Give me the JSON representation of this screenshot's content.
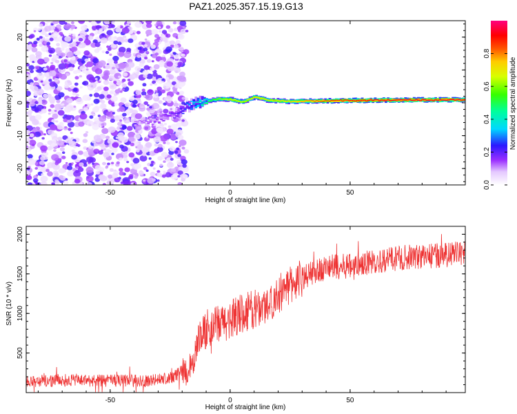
{
  "title": "PAZ1.2025.357.15.19.G13",
  "colors": {
    "snr_line": "#ee3333",
    "frame": "#000000"
  },
  "chart_data": [
    {
      "type": "heatmap",
      "title": "PAZ1.2025.357.15.19.G13",
      "xlabel": "Height of straight line (km)",
      "ylabel": "Frequency (Hz)",
      "xlim": [
        -85,
        98
      ],
      "ylim": [
        -25,
        25
      ],
      "xticks": [
        -50,
        0,
        50
      ],
      "yticks": [
        -20,
        -10,
        0,
        10,
        20
      ],
      "colorbar": {
        "label": "Normalized spectral amplitude",
        "range": [
          0,
          1
        ],
        "ticks": [
          0.0,
          0.2,
          0.4,
          0.6,
          0.8
        ],
        "tick_labels": [
          "0.0",
          "0.2",
          "0.4",
          "0.6",
          "0.8"
        ],
        "colormap": "rainbow (white-violet-blue-cyan-green-yellow-red-magenta)"
      },
      "description_points": {
        "noise_region_x": [
          -85,
          -18
        ],
        "noise_amplitude_range": [
          0.0,
          0.2
        ],
        "signal_track": {
          "x": [
            -40,
            -30,
            -22,
            -18,
            -14,
            -10,
            -5,
            0,
            5,
            10,
            15,
            20,
            25,
            30,
            40,
            50,
            60,
            70,
            80,
            90,
            98
          ],
          "freq": [
            -6,
            -5,
            -3,
            -1,
            0,
            0.5,
            1.2,
            1.0,
            0.3,
            1.8,
            0.8,
            0.6,
            0.4,
            0.5,
            0.6,
            0.7,
            0.8,
            0.8,
            0.9,
            0.9,
            1.0
          ],
          "amplitude": [
            0.12,
            0.15,
            0.2,
            0.3,
            0.4,
            0.5,
            0.6,
            0.7,
            0.65,
            0.75,
            0.7,
            0.7,
            0.72,
            0.78,
            0.85,
            0.9,
            0.92,
            0.93,
            0.93,
            0.93,
            0.93
          ]
        }
      }
    },
    {
      "type": "line",
      "title": "",
      "xlabel": "Height of straight line (km)",
      "ylabel": "SNR (10 * v/v)",
      "xlim": [
        -85,
        98
      ],
      "ylim": [
        0,
        2100
      ],
      "xticks": [
        -50,
        0,
        50
      ],
      "yticks": [
        500,
        1000,
        1500,
        2000
      ],
      "series": [
        {
          "name": "SNR",
          "x": [
            -85,
            -75,
            -65,
            -55,
            -45,
            -35,
            -30,
            -25,
            -22,
            -20,
            -18,
            -16,
            -14,
            -12,
            -10,
            -5,
            0,
            5,
            10,
            15,
            20,
            25,
            30,
            35,
            40,
            50,
            60,
            70,
            80,
            90,
            98
          ],
          "y": [
            150,
            150,
            160,
            150,
            150,
            150,
            160,
            180,
            230,
            270,
            280,
            300,
            600,
            750,
            800,
            850,
            920,
            1000,
            1050,
            1100,
            1250,
            1350,
            1450,
            1520,
            1580,
            1600,
            1650,
            1700,
            1720,
            1740,
            1760
          ]
        }
      ]
    }
  ]
}
